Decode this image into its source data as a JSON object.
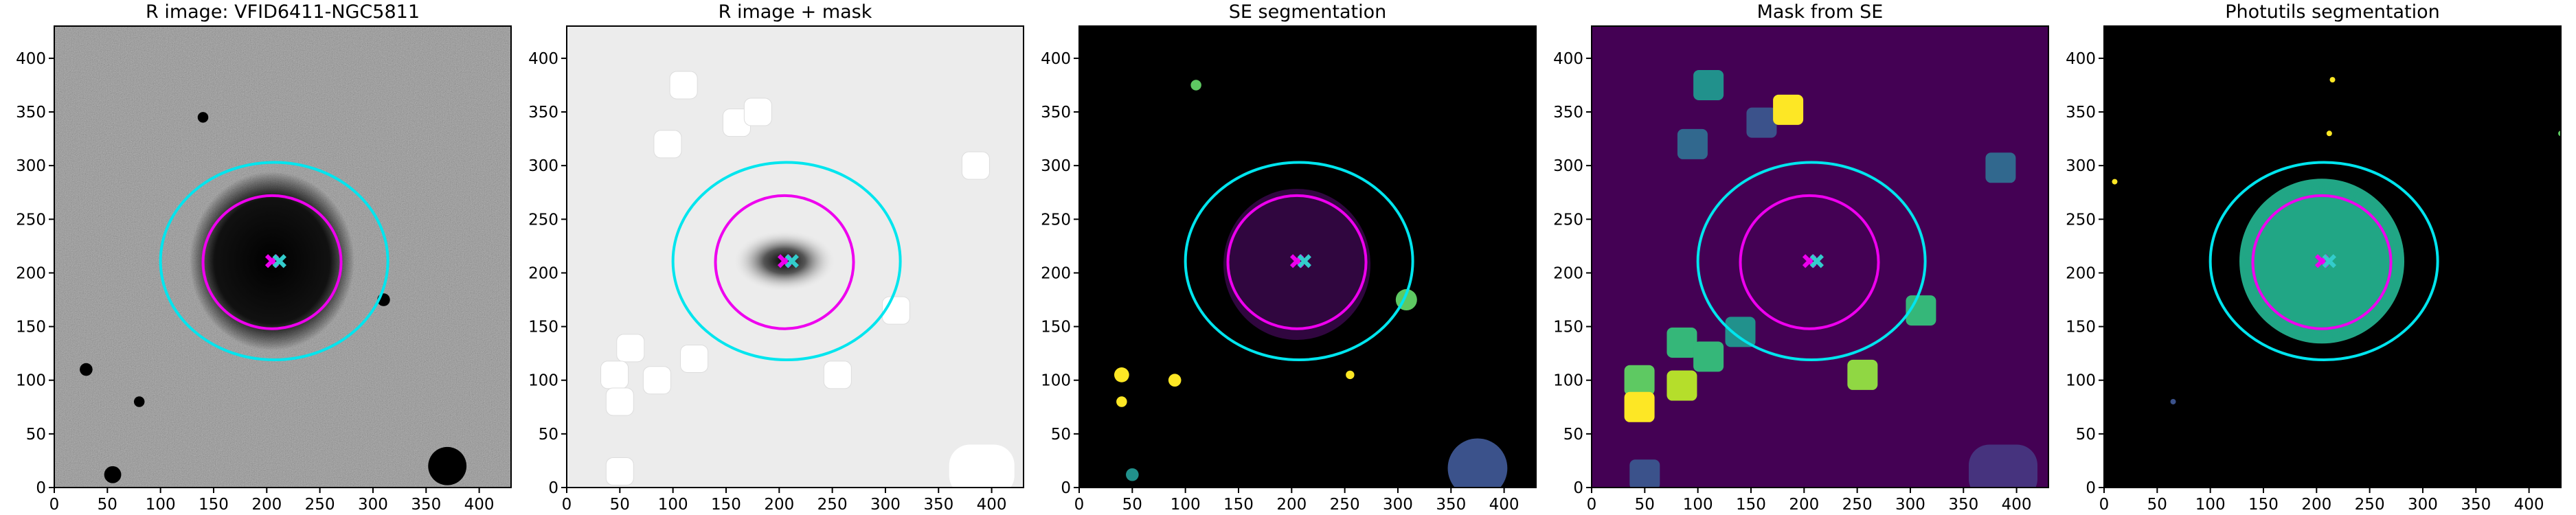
{
  "chart_data": [
    {
      "type": "image",
      "title": "R image: VFID6411-NGC5811",
      "background": "#808080",
      "texture": "noise",
      "xlim": [
        0,
        430
      ],
      "ylim": [
        0,
        430
      ],
      "xticks": [
        0,
        50,
        100,
        150,
        200,
        250,
        300,
        350,
        400
      ],
      "yticks": [
        0,
        50,
        100,
        150,
        200,
        250,
        300,
        350,
        400
      ],
      "ellipses": [
        {
          "color": "#00e5ee",
          "center": [
            207,
            211
          ],
          "radii": [
            107,
            92
          ]
        },
        {
          "color": "#ee00ee",
          "center": [
            205,
            210
          ],
          "radii": [
            65,
            62
          ]
        }
      ],
      "markers": [
        {
          "color": "#ee00ee",
          "x": 205,
          "y": 211
        },
        {
          "color": "#33cccc",
          "x": 212,
          "y": 211
        }
      ]
    },
    {
      "type": "image",
      "title": "R image + mask",
      "background": "#ececec",
      "texture": "light",
      "xlim": [
        0,
        430
      ],
      "ylim": [
        0,
        430
      ],
      "xticks": [
        0,
        50,
        100,
        150,
        200,
        250,
        300,
        350,
        400
      ],
      "yticks": [
        0,
        50,
        100,
        150,
        200,
        250,
        300,
        350,
        400
      ],
      "ellipses": [
        {
          "color": "#00e5ee",
          "center": [
            207,
            211
          ],
          "radii": [
            107,
            92
          ]
        },
        {
          "color": "#ee00ee",
          "center": [
            205,
            210
          ],
          "radii": [
            65,
            62
          ]
        }
      ],
      "markers": [
        {
          "color": "#ee00ee",
          "x": 205,
          "y": 211
        },
        {
          "color": "#33cccc",
          "x": 212,
          "y": 211
        }
      ]
    },
    {
      "type": "image",
      "title": "SE segmentation",
      "background": "#000000",
      "texture": "se",
      "xlim": [
        0,
        430
      ],
      "ylim": [
        0,
        430
      ],
      "xticks": [
        0,
        50,
        100,
        150,
        200,
        250,
        300,
        350,
        400
      ],
      "yticks": [
        0,
        50,
        100,
        150,
        200,
        250,
        300,
        350,
        400
      ],
      "ellipses": [
        {
          "color": "#00e5ee",
          "center": [
            207,
            211
          ],
          "radii": [
            107,
            92
          ]
        },
        {
          "color": "#ee00ee",
          "center": [
            205,
            210
          ],
          "radii": [
            65,
            62
          ]
        }
      ],
      "markers": [
        {
          "color": "#ee00ee",
          "x": 205,
          "y": 211
        },
        {
          "color": "#33cccc",
          "x": 212,
          "y": 211
        }
      ]
    },
    {
      "type": "image",
      "title": "Mask from SE",
      "background": "#440154",
      "texture": "mask",
      "xlim": [
        0,
        430
      ],
      "ylim": [
        0,
        430
      ],
      "xticks": [
        0,
        50,
        100,
        150,
        200,
        250,
        300,
        350,
        400
      ],
      "yticks": [
        0,
        50,
        100,
        150,
        200,
        250,
        300,
        350,
        400
      ],
      "ellipses": [
        {
          "color": "#00e5ee",
          "center": [
            207,
            211
          ],
          "radii": [
            107,
            92
          ]
        },
        {
          "color": "#ee00ee",
          "center": [
            205,
            210
          ],
          "radii": [
            65,
            62
          ]
        }
      ],
      "markers": [
        {
          "color": "#ee00ee",
          "x": 205,
          "y": 211
        },
        {
          "color": "#33cccc",
          "x": 212,
          "y": 211
        }
      ]
    },
    {
      "type": "image",
      "title": "Photutils segmentation",
      "background": "#000000",
      "texture": "phot",
      "xlim": [
        0,
        430
      ],
      "ylim": [
        0,
        430
      ],
      "xticks": [
        0,
        50,
        100,
        150,
        200,
        250,
        300,
        350,
        400
      ],
      "yticks": [
        0,
        50,
        100,
        150,
        200,
        250,
        300,
        350,
        400
      ],
      "ellipses": [
        {
          "color": "#00e5ee",
          "center": [
            207,
            211
          ],
          "radii": [
            107,
            92
          ]
        },
        {
          "color": "#ee00ee",
          "center": [
            205,
            210
          ],
          "radii": [
            65,
            62
          ]
        }
      ],
      "markers": [
        {
          "color": "#ee00ee",
          "x": 205,
          "y": 211
        },
        {
          "color": "#33cccc",
          "x": 212,
          "y": 211
        }
      ]
    }
  ]
}
